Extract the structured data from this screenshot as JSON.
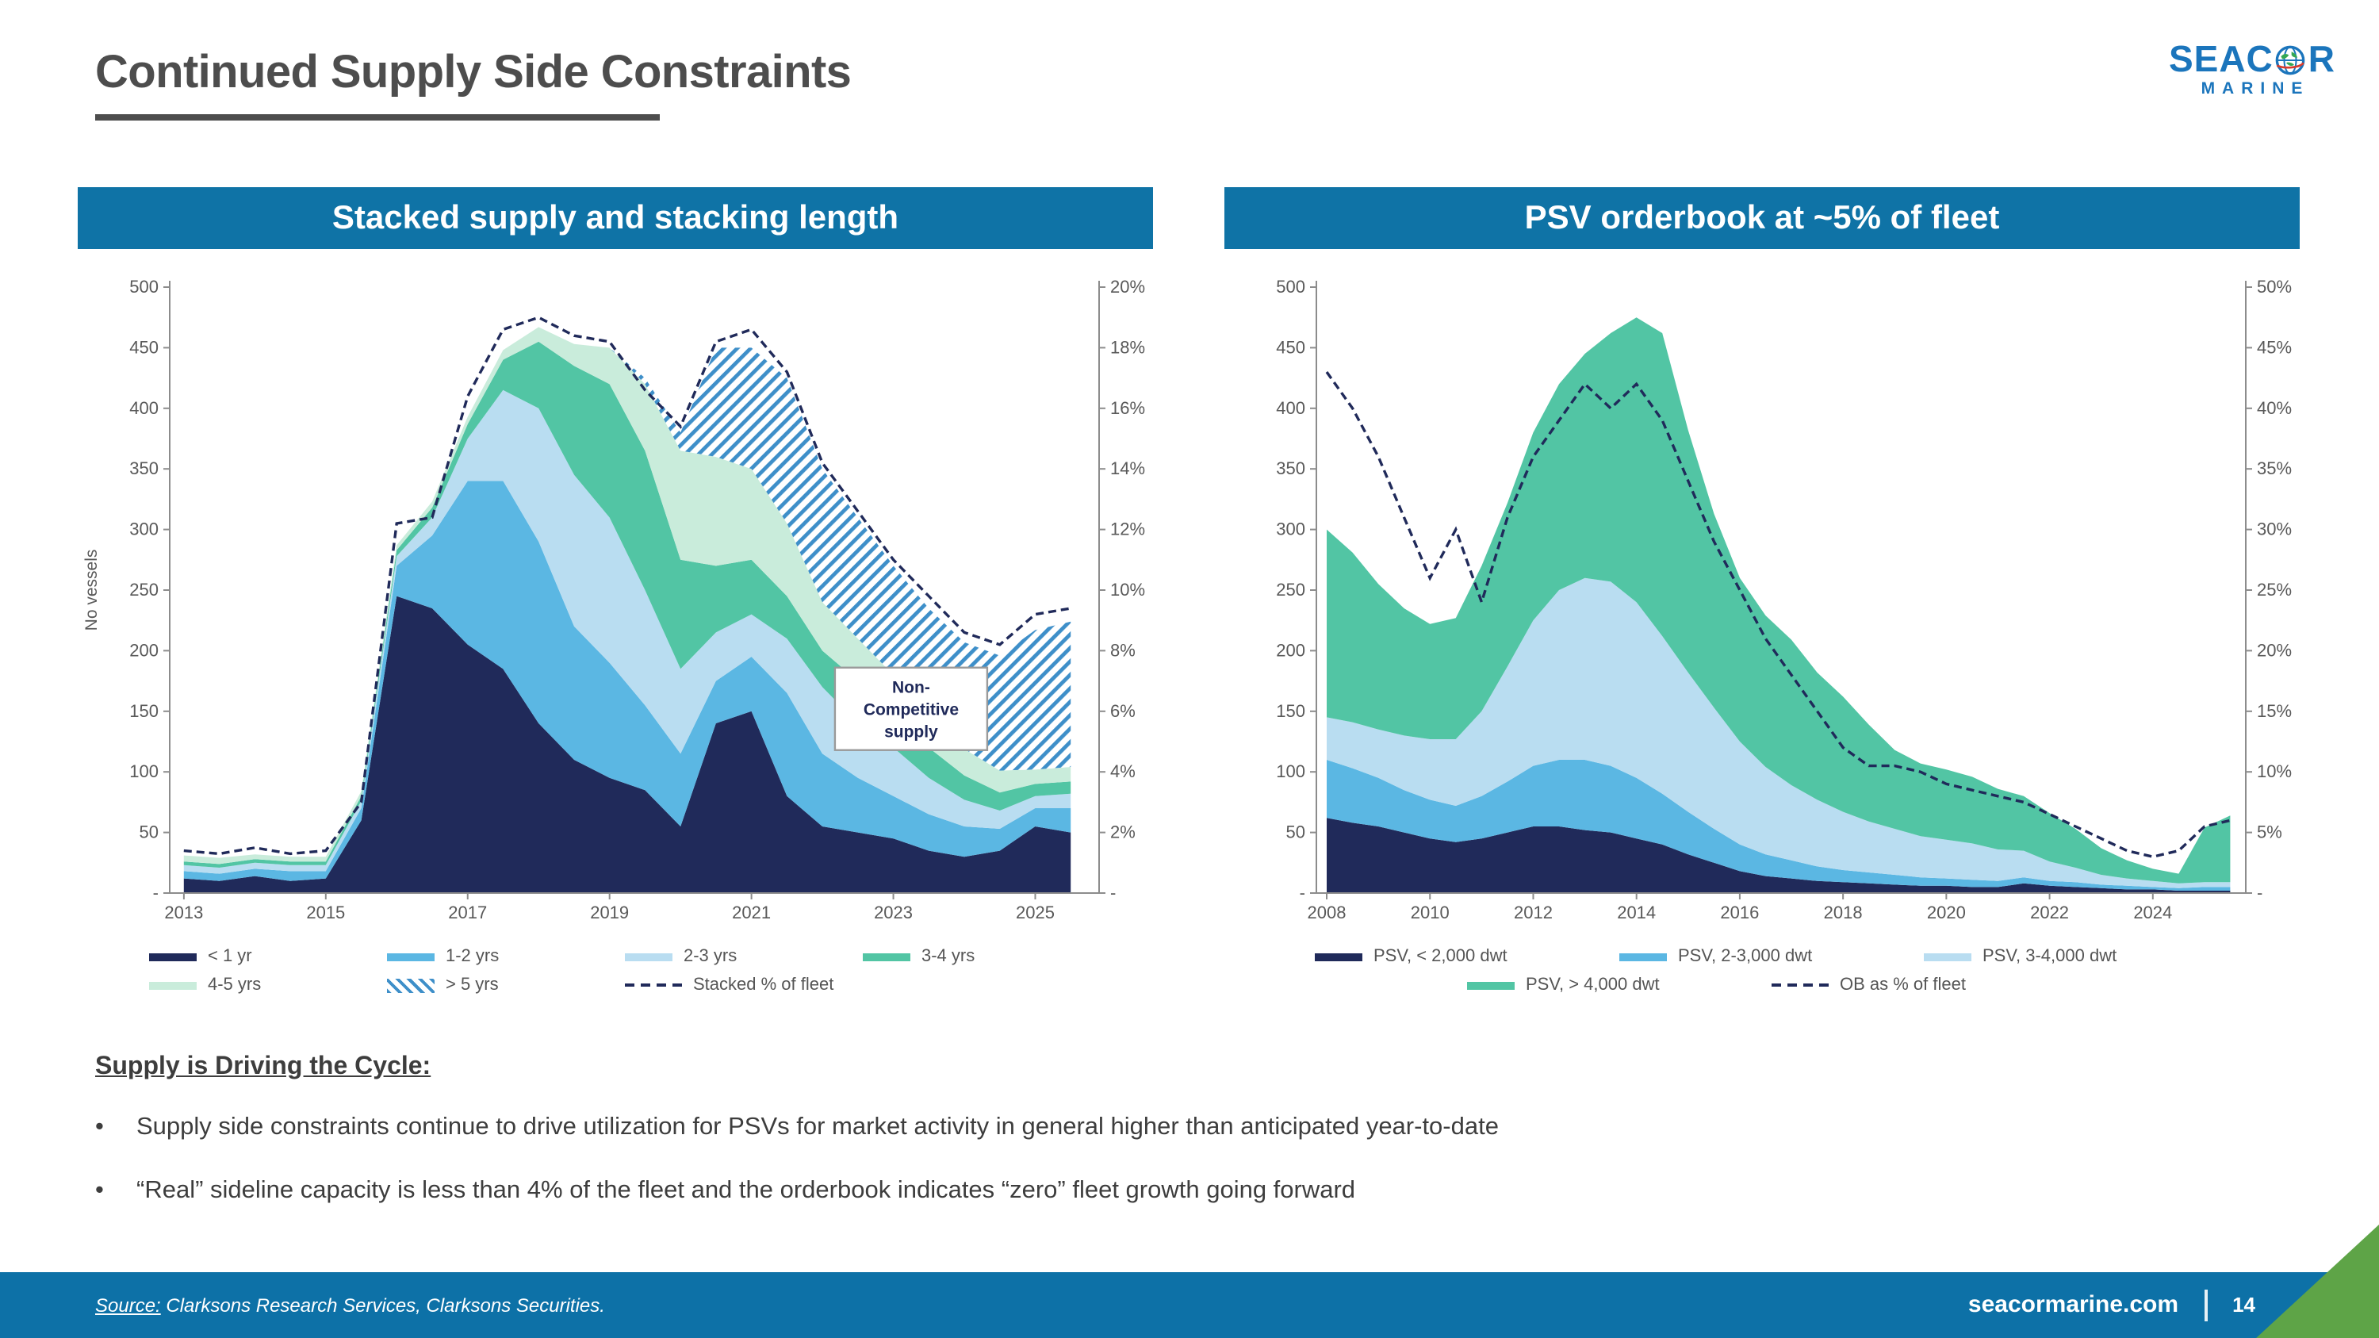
{
  "page": {
    "title": "Continued Supply Side Constraints",
    "logo": {
      "text_before_globe": "SEAC",
      "text_after_globe": "R",
      "subtext": "MARINE",
      "brand_blue": "#1B75BC",
      "globe_green": "#34A853",
      "accent_red": "#D93A2B"
    },
    "section_heading": "Supply is Driving the Cycle:",
    "bullet_marker": "•",
    "bullets": [
      "Supply side constraints continue to drive utilization for PSVs for market activity in general higher than anticipated year-to-date",
      "“Real” sideline capacity is less than 4% of the fleet and the orderbook indicates “zero” fleet growth going forward"
    ],
    "footer": {
      "source_label": "Source:",
      "source_text": " Clarksons Research Services, Clarksons Securities.",
      "website": "seacormarine.com",
      "page_number": "14"
    },
    "colors": {
      "header_bar_blue": "#0F73A6",
      "footer_blue": "#0D71A7",
      "title_gray": "#4D4D4D",
      "corner_green": "#5EA447",
      "navy": "#202A5A"
    }
  },
  "chart_data": [
    {
      "type": "area",
      "title": "Stacked supply and stacking length",
      "ylabel_left": "No vessels",
      "xlim": [
        2012.8,
        2025.9
      ],
      "ylim_left": [
        0,
        500
      ],
      "ylim_right": [
        0,
        20
      ],
      "grid": false,
      "x": [
        2013,
        2013.5,
        2014,
        2014.5,
        2015,
        2015.5,
        2016,
        2016.5,
        2017,
        2017.5,
        2018,
        2018.5,
        2019,
        2019.5,
        2020,
        2020.5,
        2021,
        2021.5,
        2022,
        2022.5,
        2023,
        2023.5,
        2024,
        2024.5,
        2025,
        2025.5
      ],
      "series": [
        {
          "name": "< 1 yr",
          "color": "#202A5A",
          "values": [
            12,
            10,
            14,
            10,
            12,
            60,
            245,
            235,
            205,
            185,
            140,
            110,
            95,
            85,
            55,
            140,
            150,
            80,
            55,
            50,
            45,
            35,
            30,
            35,
            55,
            50
          ]
        },
        {
          "name": "1-2 yrs",
          "color": "#5BB7E3",
          "values": [
            6,
            6,
            6,
            8,
            6,
            10,
            25,
            60,
            135,
            155,
            150,
            110,
            95,
            70,
            60,
            35,
            45,
            85,
            60,
            45,
            35,
            30,
            25,
            18,
            15,
            20
          ]
        },
        {
          "name": "2-3 yrs",
          "color": "#B9DDF1",
          "values": [
            5,
            5,
            5,
            5,
            5,
            6,
            8,
            15,
            35,
            75,
            110,
            125,
            120,
            95,
            70,
            40,
            35,
            45,
            55,
            45,
            40,
            30,
            22,
            15,
            10,
            12
          ]
        },
        {
          "name": "3-4 yrs",
          "color": "#52C5A4",
          "values": [
            3,
            3,
            3,
            3,
            3,
            4,
            5,
            8,
            12,
            25,
            55,
            90,
            110,
            115,
            90,
            55,
            45,
            35,
            30,
            35,
            30,
            25,
            20,
            15,
            10,
            10
          ]
        },
        {
          "name": "4-5 yrs",
          "color": "#C9ECDB",
          "values": [
            5,
            5,
            4,
            4,
            4,
            4,
            4,
            5,
            6,
            8,
            12,
            18,
            30,
            55,
            90,
            90,
            75,
            60,
            40,
            35,
            30,
            30,
            22,
            18,
            12,
            12
          ]
        },
        {
          "name": "> 5 yrs",
          "color": "#3E8FC9",
          "hatch": true,
          "values": [
            0,
            0,
            0,
            0,
            0,
            0,
            0,
            0,
            0,
            0,
            0,
            0,
            0,
            5,
            15,
            90,
            100,
            120,
            110,
            100,
            90,
            85,
            88,
            95,
            115,
            120
          ]
        }
      ],
      "line": {
        "name": "Stacked % of fleet",
        "color": "#202A5A",
        "axis": "right",
        "values": [
          1.4,
          1.3,
          1.5,
          1.3,
          1.4,
          3.0,
          12.2,
          12.4,
          16.4,
          18.6,
          19.0,
          18.4,
          18.2,
          16.6,
          15.4,
          18.2,
          18.6,
          17.2,
          14.2,
          12.6,
          11.0,
          9.8,
          8.6,
          8.2,
          9.2,
          9.4
        ]
      },
      "annotation": {
        "x": 2023.25,
        "y": 152,
        "lines": [
          "Non-",
          "Competitive",
          "supply"
        ]
      },
      "yticks_left": [
        {
          "v": 500,
          "label": "500"
        },
        {
          "v": 450,
          "label": "450"
        },
        {
          "v": 400,
          "label": "400"
        },
        {
          "v": 350,
          "label": "350"
        },
        {
          "v": 300,
          "label": "300"
        },
        {
          "v": 250,
          "label": "250"
        },
        {
          "v": 200,
          "label": "200"
        },
        {
          "v": 150,
          "label": "150"
        },
        {
          "v": 100,
          "label": "100"
        },
        {
          "v": 50,
          "label": "50"
        },
        {
          "v": 0,
          "label": "-"
        }
      ],
      "yticks_right": [
        {
          "v": 20,
          "label": "20%"
        },
        {
          "v": 18,
          "label": "18%"
        },
        {
          "v": 16,
          "label": "16%"
        },
        {
          "v": 14,
          "label": "14%"
        },
        {
          "v": 12,
          "label": "12%"
        },
        {
          "v": 10,
          "label": "10%"
        },
        {
          "v": 8,
          "label": "8%"
        },
        {
          "v": 6,
          "label": "6%"
        },
        {
          "v": 4,
          "label": "4%"
        },
        {
          "v": 2,
          "label": "2%"
        },
        {
          "v": 0,
          "label": "-"
        }
      ],
      "xticks": [
        {
          "v": 2013,
          "label": "2013"
        },
        {
          "v": 2015,
          "label": "2015"
        },
        {
          "v": 2017,
          "label": "2017"
        },
        {
          "v": 2019,
          "label": "2019"
        },
        {
          "v": 2021,
          "label": "2021"
        },
        {
          "v": 2023,
          "label": "2023"
        },
        {
          "v": 2025,
          "label": "2025"
        }
      ],
      "legend_rows": [
        [
          {
            "label": "< 1 yr",
            "swatch": "solid",
            "color": "#202A5A"
          },
          {
            "label": "1-2 yrs",
            "swatch": "solid",
            "color": "#5BB7E3"
          },
          {
            "label": "2-3 yrs",
            "swatch": "solid",
            "color": "#B9DDF1"
          },
          {
            "label": "3-4 yrs",
            "swatch": "solid",
            "color": "#52C5A4"
          }
        ],
        [
          {
            "label": "4-5 yrs",
            "swatch": "solid",
            "color": "#C9ECDB"
          },
          {
            "label": "> 5 yrs",
            "swatch": "hatch",
            "color": "#3E8FC9"
          },
          {
            "label": "Stacked % of fleet",
            "swatch": "dashed",
            "color": "#202A5A"
          }
        ]
      ]
    },
    {
      "type": "area",
      "title": "PSV orderbook at ~5% of fleet",
      "xlim": [
        2007.8,
        2025.8
      ],
      "ylim_left": [
        0,
        500
      ],
      "ylim_right": [
        0,
        50
      ],
      "grid": false,
      "x": [
        2008,
        2008.5,
        2009,
        2009.5,
        2010,
        2010.5,
        2011,
        2011.5,
        2012,
        2012.5,
        2013,
        2013.5,
        2014,
        2014.5,
        2015,
        2015.5,
        2016,
        2016.5,
        2017,
        2017.5,
        2018,
        2018.5,
        2019,
        2019.5,
        2020,
        2020.5,
        2021,
        2021.5,
        2022,
        2022.5,
        2023,
        2023.5,
        2024,
        2024.5,
        2025,
        2025.5
      ],
      "series": [
        {
          "name": "PSV, < 2,000 dwt",
          "color": "#202A5A",
          "values": [
            62,
            58,
            55,
            50,
            45,
            42,
            45,
            50,
            55,
            55,
            52,
            50,
            45,
            40,
            32,
            25,
            18,
            14,
            12,
            10,
            9,
            8,
            7,
            6,
            6,
            5,
            5,
            8,
            6,
            5,
            4,
            3,
            3,
            2,
            2,
            2
          ]
        },
        {
          "name": "PSV, 2-3,000 dwt",
          "color": "#5BB7E3",
          "values": [
            48,
            45,
            40,
            35,
            32,
            30,
            35,
            42,
            50,
            55,
            58,
            55,
            50,
            42,
            35,
            28,
            22,
            18,
            15,
            12,
            10,
            9,
            8,
            7,
            6,
            6,
            5,
            5,
            4,
            4,
            3,
            3,
            2,
            2,
            3,
            3
          ]
        },
        {
          "name": "PSV, 3-4,000 dwt",
          "color": "#B9DDF1",
          "values": [
            35,
            38,
            40,
            45,
            50,
            55,
            70,
            95,
            120,
            140,
            150,
            152,
            145,
            130,
            115,
            100,
            85,
            72,
            62,
            55,
            48,
            42,
            38,
            34,
            32,
            30,
            26,
            22,
            16,
            12,
            8,
            6,
            5,
            4,
            4,
            4
          ]
        },
        {
          "name": "PSV, > 4,000 dwt",
          "color": "#52C5A4",
          "values": [
            155,
            140,
            120,
            105,
            95,
            100,
            120,
            135,
            155,
            170,
            185,
            205,
            235,
            250,
            200,
            160,
            135,
            125,
            120,
            105,
            95,
            80,
            65,
            60,
            58,
            55,
            50,
            45,
            40,
            32,
            22,
            15,
            10,
            8,
            45,
            55
          ]
        }
      ],
      "line": {
        "name": "OB as % of fleet",
        "color": "#202A5A",
        "axis": "right",
        "values": [
          43,
          40,
          36,
          31,
          26,
          30,
          24,
          31,
          36,
          39,
          42,
          40,
          42,
          39,
          34,
          29,
          25,
          21,
          18,
          15,
          12,
          10.5,
          10.5,
          10,
          9,
          8.5,
          8,
          7.5,
          6.5,
          5.5,
          4.5,
          3.5,
          3,
          3.5,
          5.5,
          6
        ]
      },
      "yticks_left": [
        {
          "v": 500,
          "label": "500"
        },
        {
          "v": 450,
          "label": "450"
        },
        {
          "v": 400,
          "label": "400"
        },
        {
          "v": 350,
          "label": "350"
        },
        {
          "v": 300,
          "label": "300"
        },
        {
          "v": 250,
          "label": "250"
        },
        {
          "v": 200,
          "label": "200"
        },
        {
          "v": 150,
          "label": "150"
        },
        {
          "v": 100,
          "label": "100"
        },
        {
          "v": 50,
          "label": "50"
        },
        {
          "v": 0,
          "label": "-"
        }
      ],
      "yticks_right": [
        {
          "v": 50,
          "label": "50%"
        },
        {
          "v": 45,
          "label": "45%"
        },
        {
          "v": 40,
          "label": "40%"
        },
        {
          "v": 35,
          "label": "35%"
        },
        {
          "v": 30,
          "label": "30%"
        },
        {
          "v": 25,
          "label": "25%"
        },
        {
          "v": 20,
          "label": "20%"
        },
        {
          "v": 15,
          "label": "15%"
        },
        {
          "v": 10,
          "label": "10%"
        },
        {
          "v": 5,
          "label": "5%"
        },
        {
          "v": 0,
          "label": "-"
        }
      ],
      "xticks": [
        {
          "v": 2008,
          "label": "2008"
        },
        {
          "v": 2010,
          "label": "2010"
        },
        {
          "v": 2012,
          "label": "2012"
        },
        {
          "v": 2014,
          "label": "2014"
        },
        {
          "v": 2016,
          "label": "2016"
        },
        {
          "v": 2018,
          "label": "2018"
        },
        {
          "v": 2020,
          "label": "2020"
        },
        {
          "v": 2022,
          "label": "2022"
        },
        {
          "v": 2024,
          "label": "2024"
        }
      ],
      "legend_rows": [
        [
          {
            "label": "PSV, < 2,000 dwt",
            "swatch": "solid",
            "color": "#202A5A"
          },
          {
            "label": "PSV, 2-3,000 dwt",
            "swatch": "solid",
            "color": "#5BB7E3"
          },
          {
            "label": "PSV, 3-4,000 dwt",
            "swatch": "solid",
            "color": "#B9DDF1"
          }
        ],
        [
          {
            "label": "PSV, > 4,000 dwt",
            "swatch": "solid",
            "color": "#52C5A4"
          },
          {
            "label": "OB as % of fleet",
            "swatch": "dashed",
            "color": "#202A5A"
          }
        ]
      ]
    }
  ]
}
